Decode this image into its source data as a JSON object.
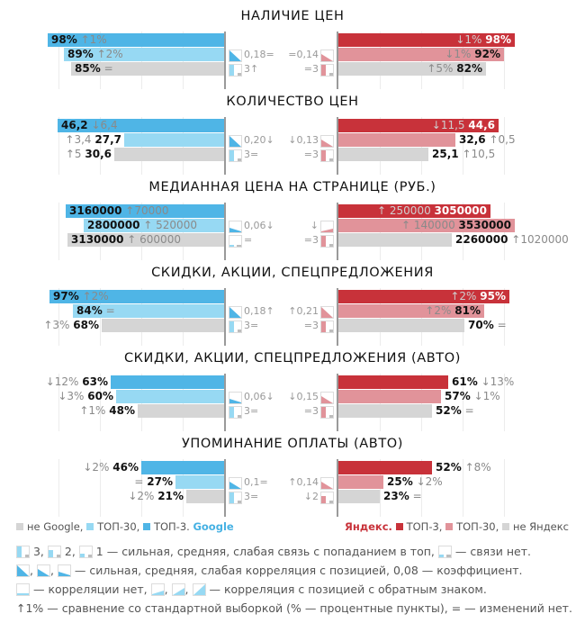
{
  "colors": {
    "google_top3": "#4fb5e6",
    "google_top30": "#97d9f3",
    "non": "#d5d5d5",
    "yandex_top3": "#c8323a",
    "yandex_top30": "#e1939a",
    "text_dark": "#111111",
    "text_muted": "#8a8a8a"
  },
  "chart_data": {
    "type": "bar",
    "orientation": "horizontal-mirrored",
    "grid": true,
    "series_names": {
      "google": [
        "ТОП-3",
        "ТОП-30",
        "не Google"
      ],
      "yandex": [
        "ТОП-3",
        "ТОП-30",
        "не Яндекс"
      ]
    },
    "panels": [
      {
        "title": "НАЛИЧИЕ ЦЕН",
        "scale_max": 100,
        "google": [
          {
            "value": 98,
            "label": "98%",
            "change": "↑1%"
          },
          {
            "value": 89,
            "label": "89%",
            "change": "↑2%"
          },
          {
            "value": 85,
            "label": "85%",
            "change": "="
          }
        ],
        "yandex": [
          {
            "value": 98,
            "label": "98%",
            "change": "↓1%"
          },
          {
            "value": 92,
            "label": "92%",
            "change": "↓1%"
          },
          {
            "value": 82,
            "label": "82%",
            "change": "↑5%"
          }
        ],
        "google_corr": {
          "text": "0,18=",
          "icon": "strong-correlation",
          "strength": 3
        },
        "google_link": {
          "text": "3↑",
          "icon": "strong-link",
          "level": 3
        },
        "yandex_corr": {
          "text": "=0,14",
          "icon": "medium-correlation",
          "strength": 2
        },
        "yandex_link": {
          "text": "=3",
          "icon": "strong-link",
          "level": 3
        }
      },
      {
        "title": "КОЛИЧЕСТВО ЦЕН",
        "scale_max": 50,
        "google": [
          {
            "value": 46.2,
            "label": "46,2",
            "change": "↓6,4"
          },
          {
            "value": 27.7,
            "label": "27,7",
            "change": "↑3,4"
          },
          {
            "value": 30.6,
            "label": "30,6",
            "change": "↑5"
          }
        ],
        "yandex": [
          {
            "value": 44.6,
            "label": "44,6",
            "change": "↓11,5"
          },
          {
            "value": 32.6,
            "label": "32,6",
            "change": "↑0,5"
          },
          {
            "value": 25.1,
            "label": "25,1",
            "change": "↑10,5"
          }
        ],
        "google_corr": {
          "text": "0,20↓",
          "icon": "strong-correlation",
          "strength": 3
        },
        "google_link": {
          "text": "3=",
          "icon": "strong-link",
          "level": 3
        },
        "yandex_corr": {
          "text": "↓0,13",
          "icon": "medium-correlation",
          "strength": 2
        },
        "yandex_link": {
          "text": "=3",
          "icon": "strong-link",
          "level": 3
        }
      },
      {
        "title": "МЕДИАННАЯ ЦЕНА НА СТРАНИЦЕ (РУБ.)",
        "scale_max": 3600000,
        "google": [
          {
            "value": 3160000,
            "label": "3160000",
            "change": "↑70000"
          },
          {
            "value": 2800000,
            "label": "2800000",
            "change": "↑ 520000"
          },
          {
            "value": 3130000,
            "label": "3130000",
            "change": "↑ 600000"
          }
        ],
        "yandex": [
          {
            "value": 3050000,
            "label": "3050000",
            "change": "↑ 250000"
          },
          {
            "value": 3530000,
            "label": "3530000",
            "change": "↑ 140000"
          },
          {
            "value": 2260000,
            "label": "2260000",
            "change": "↑1020000"
          }
        ],
        "google_corr": {
          "text": "0,06↓",
          "icon": "weak-correlation",
          "strength": 1
        },
        "google_link": {
          "text": "=",
          "icon": "no-link",
          "level": 0
        },
        "yandex_corr": {
          "text": "↓",
          "icon": "reverse-weak-correlation",
          "strength": 1
        },
        "yandex_link": {
          "text": "=3",
          "icon": "strong-link",
          "level": 3
        }
      },
      {
        "title": "СКИДКИ, АКЦИИ, СПЕЦПРЕДЛОЖЕНИЯ",
        "scale_max": 100,
        "google": [
          {
            "value": 97,
            "label": "97%",
            "change": "↑2%"
          },
          {
            "value": 84,
            "label": "84%",
            "change": "="
          },
          {
            "value": 68,
            "label": "68%",
            "change": "↑3%"
          }
        ],
        "yandex": [
          {
            "value": 95,
            "label": "95%",
            "change": "↑2%"
          },
          {
            "value": 81,
            "label": "81%",
            "change": "↑2%"
          },
          {
            "value": 70,
            "label": "70%",
            "change": "="
          }
        ],
        "google_corr": {
          "text": "0,18↑",
          "icon": "strong-correlation",
          "strength": 3
        },
        "google_link": {
          "text": "3=",
          "icon": "strong-link",
          "level": 3
        },
        "yandex_corr": {
          "text": "↑0,21",
          "icon": "strong-correlation",
          "strength": 3
        },
        "yandex_link": {
          "text": "=3",
          "icon": "strong-link",
          "level": 3
        }
      },
      {
        "title": "СКИДКИ, АКЦИИ, СПЕЦПРЕДЛОЖЕНИЯ (АВТО)",
        "scale_max": 100,
        "google": [
          {
            "value": 63,
            "label": "63%",
            "change": "↓12%"
          },
          {
            "value": 60,
            "label": "60%",
            "change": "↓3%"
          },
          {
            "value": 48,
            "label": "48%",
            "change": "↑1%"
          }
        ],
        "yandex": [
          {
            "value": 61,
            "label": "61%",
            "change": "↓13%"
          },
          {
            "value": 57,
            "label": "57%",
            "change": "↓1%"
          },
          {
            "value": 52,
            "label": "52%",
            "change": "="
          }
        ],
        "google_corr": {
          "text": "0,06↓",
          "icon": "weak-correlation",
          "strength": 1
        },
        "google_link": {
          "text": "3=",
          "icon": "strong-link",
          "level": 3
        },
        "yandex_corr": {
          "text": "↓0,15",
          "icon": "medium-correlation",
          "strength": 2
        },
        "yandex_link": {
          "text": "=3",
          "icon": "strong-link",
          "level": 3
        }
      },
      {
        "title": "УПОМИНАНИЕ ОПЛАТЫ (АВТО)",
        "scale_max": 100,
        "google": [
          {
            "value": 46,
            "label": "46%",
            "change": "↓2%"
          },
          {
            "value": 27,
            "label": "27%",
            "change": "="
          },
          {
            "value": 21,
            "label": "21%",
            "change": "↓2%"
          }
        ],
        "yandex": [
          {
            "value": 52,
            "label": "52%",
            "change": "↑8%"
          },
          {
            "value": 25,
            "label": "25%",
            "change": "↓2%"
          },
          {
            "value": 23,
            "label": "23%",
            "change": "="
          }
        ],
        "google_corr": {
          "text": "0,1=",
          "icon": "medium-correlation",
          "strength": 2
        },
        "google_link": {
          "text": "3=",
          "icon": "strong-link",
          "level": 3
        },
        "yandex_corr": {
          "text": "↑0,14",
          "icon": "medium-correlation",
          "strength": 2
        },
        "yandex_link": {
          "text": "↓2",
          "icon": "medium-link",
          "level": 2
        }
      }
    ]
  },
  "legend": {
    "google": {
      "items": [
        "не Google,",
        "ТОП-30,",
        "ТОП-3."
      ],
      "brand": "Google"
    },
    "yandex": {
      "brand": "Яндекс.",
      "items": [
        "ТОП-3,",
        "ТОП-30,",
        "не Яндекс"
      ]
    }
  },
  "notes": {
    "line1": {
      "n3": "3,",
      "n2": "2,",
      "n1": "1 — сильная, средняя, слабая связь с попаданием в топ,",
      "tail": "— связи нет."
    },
    "line2": {
      "sep1": ",",
      "sep2": ",",
      "text": "— сильная, средняя, слабая корреляция с позицией, 0,08 — коэффициент."
    },
    "line3": {
      "a": "— корреляции нет,",
      "sep1": ",",
      "sep2": ",",
      "b": "— корреляция с позицией с обратным знаком."
    },
    "line4": "↑1% — сравнение со стандартной выборкой (% — процентные пункты), = — изменений нет."
  }
}
